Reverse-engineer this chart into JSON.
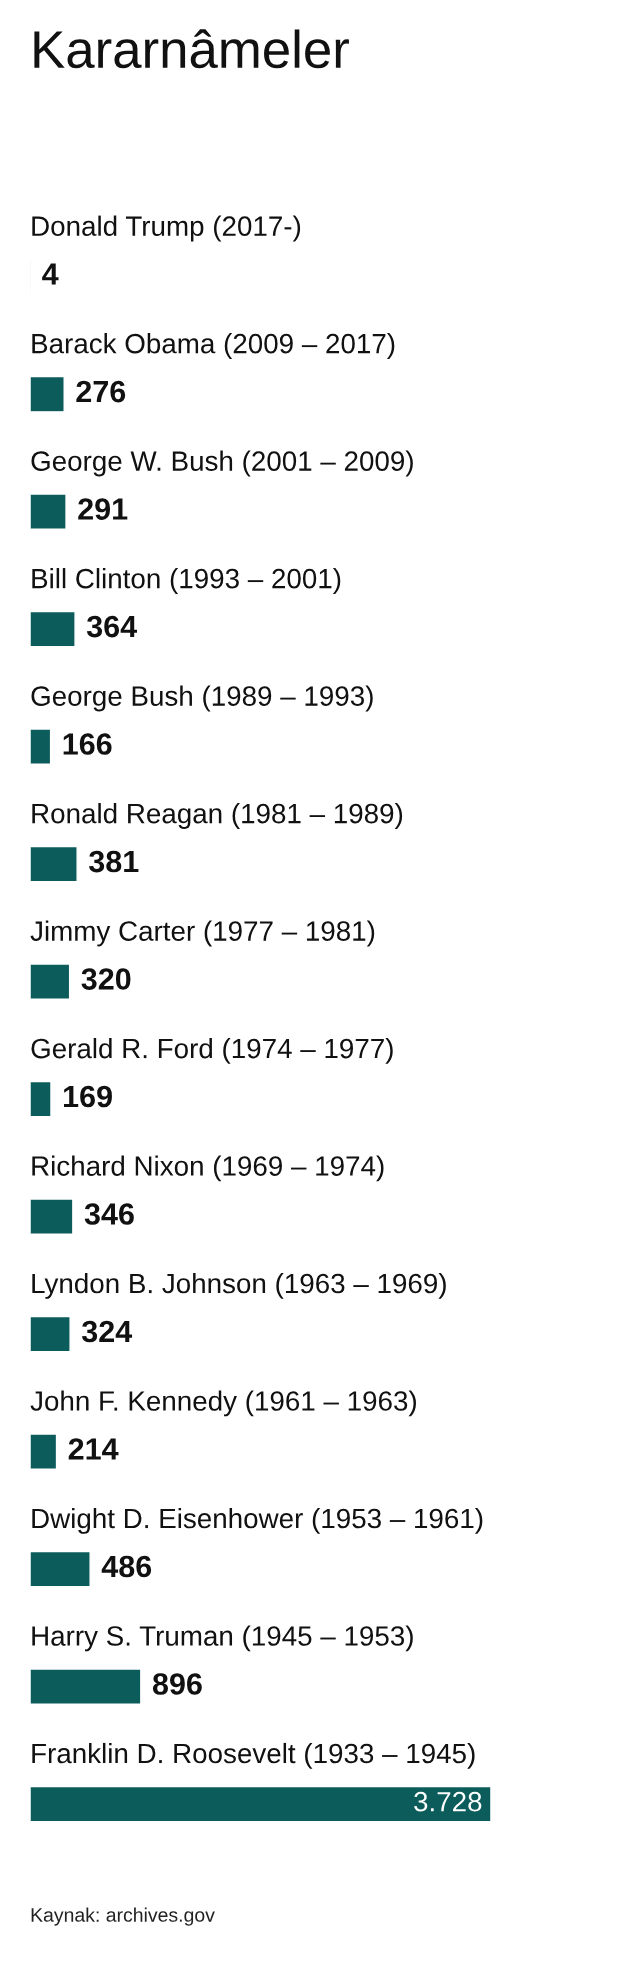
{
  "chart_data": {
    "type": "bar",
    "orientation": "horizontal",
    "title": "Kararnâmeler",
    "categories": [
      "Donald Trump (2017-)",
      "Barack Obama (2009 – 2017)",
      "George W. Bush (2001 – 2009)",
      "Bill Clinton (1993 – 2001)",
      "George Bush (1989 – 1993)",
      "Ronald Reagan (1981 – 1989)",
      "Jimmy Carter (1977 – 1981)",
      "Gerald R. Ford (1974 – 1977)",
      "Richard Nixon (1969 – 1974)",
      "Lyndon B. Johnson (1963 – 1969)",
      "John F. Kennedy (1961 – 1963)",
      "Dwight D. Eisenhower (1953 – 1961)",
      "Harry S. Truman (1945 – 1953)",
      "Franklin D. Roosevelt (1933 – 1945)"
    ],
    "values": [
      4,
      276,
      291,
      364,
      166,
      381,
      320,
      169,
      346,
      324,
      214,
      486,
      896,
      3728
    ],
    "value_labels": [
      "4",
      "276",
      "291",
      "364",
      "166",
      "381",
      "320",
      "169",
      "346",
      "324",
      "214",
      "486",
      "896",
      "3.728"
    ],
    "colors": [
      "#b0324a",
      "#0d5c5c",
      "#0d5c5c",
      "#0d5c5c",
      "#0d5c5c",
      "#0d5c5c",
      "#0d5c5c",
      "#0d5c5c",
      "#0d5c5c",
      "#0d5c5c",
      "#0d5c5c",
      "#0d5c5c",
      "#0d5c5c",
      "#0d5c5c"
    ],
    "annotations": [
      "Kaynak: archives.gov"
    ]
  }
}
